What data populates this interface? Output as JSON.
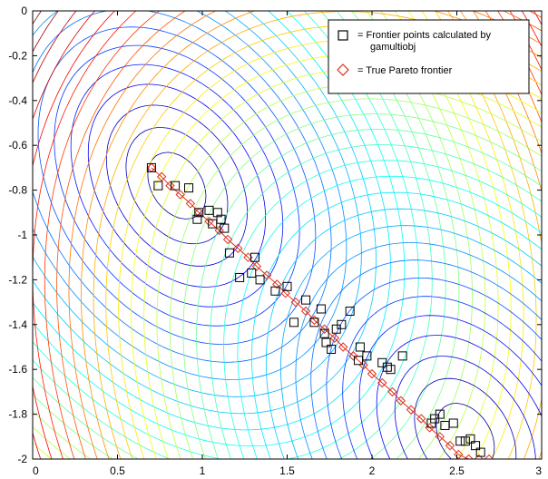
{
  "chart_data": {
    "type": "scatter",
    "title": "",
    "xlabel": "",
    "ylabel": "",
    "xlim": [
      0,
      3
    ],
    "ylim": [
      -2,
      0
    ],
    "xticks": [
      "0",
      "0.5",
      "1",
      "1.5",
      "2",
      "2.5",
      "3"
    ],
    "yticks": [
      "0",
      "-0.2",
      "-0.4",
      "-0.6",
      "-0.8",
      "-1",
      "-1.2",
      "-1.4",
      "-1.6",
      "-1.8",
      "-2"
    ],
    "grid": false,
    "legend_position": "top-right",
    "background": "contour plot of the two objective functions (colormap jet)",
    "series": [
      {
        "name": "= Frontier points calculated by gamultiobj",
        "marker": "square",
        "color": "#000000",
        "x": [
          0.7,
          0.74,
          0.84,
          0.92,
          0.97,
          0.98,
          1.04,
          1.06,
          1.09,
          1.11,
          1.13,
          1.16,
          1.22,
          1.29,
          1.31,
          1.34,
          1.43,
          1.5,
          1.54,
          1.61,
          1.66,
          1.7,
          1.72,
          1.73,
          1.76,
          1.79,
          1.82,
          1.87,
          1.92,
          1.93,
          1.97,
          2.06,
          2.09,
          2.11,
          2.18,
          2.35,
          2.37,
          2.4,
          2.43,
          2.48,
          2.52,
          2.55,
          2.58,
          2.61,
          2.64
        ],
        "y": [
          -0.7,
          -0.78,
          -0.78,
          -0.79,
          -0.93,
          -0.9,
          -0.89,
          -0.95,
          -0.9,
          -0.93,
          -0.97,
          -1.08,
          -1.19,
          -1.17,
          -1.1,
          -1.2,
          -1.25,
          -1.23,
          -1.39,
          -1.29,
          -1.39,
          -1.33,
          -1.44,
          -1.48,
          -1.51,
          -1.42,
          -1.4,
          -1.34,
          -1.56,
          -1.5,
          -1.54,
          -1.57,
          -1.59,
          -1.6,
          -1.54,
          -1.84,
          -1.82,
          -1.8,
          -1.85,
          -1.84,
          -1.92,
          -1.92,
          -1.91,
          -1.94,
          -1.97
        ]
      },
      {
        "name": "= True Pareto frontier",
        "marker": "diamond",
        "color": "#e03020",
        "x": [
          0.7,
          0.76,
          0.81,
          0.87,
          0.93,
          0.98,
          1.04,
          1.1,
          1.15,
          1.21,
          1.27,
          1.32,
          1.38,
          1.44,
          1.49,
          1.55,
          1.61,
          1.66,
          1.72,
          1.78,
          1.83,
          1.89,
          1.95,
          2.0,
          2.06,
          2.12,
          2.17,
          2.23,
          2.29,
          2.34,
          2.4,
          2.46,
          2.51,
          2.57,
          2.63,
          2.69
        ],
        "y": [
          -0.7,
          -0.74,
          -0.78,
          -0.82,
          -0.86,
          -0.9,
          -0.94,
          -0.98,
          -1.02,
          -1.06,
          -1.1,
          -1.14,
          -1.18,
          -1.22,
          -1.26,
          -1.3,
          -1.34,
          -1.38,
          -1.42,
          -1.46,
          -1.5,
          -1.54,
          -1.58,
          -1.62,
          -1.66,
          -1.7,
          -1.74,
          -1.78,
          -1.82,
          -1.86,
          -1.9,
          -1.94,
          -1.98,
          -2.0,
          -2.0,
          -2.0
        ]
      }
    ]
  },
  "legend": {
    "items": [
      {
        "text_line1": "= Frontier points calculated by",
        "text_line2": "gamultiobj",
        "marker": "square",
        "color": "#000000"
      },
      {
        "text_line1": "= True Pareto frontier",
        "text_line2": "",
        "marker": "diamond",
        "color": "#e03020"
      }
    ]
  }
}
